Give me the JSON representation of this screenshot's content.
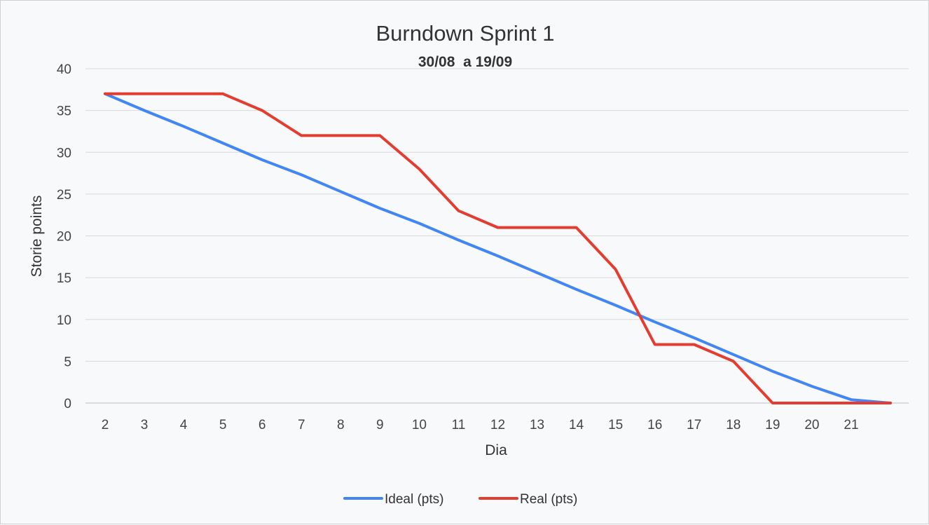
{
  "chart_data": {
    "type": "line",
    "title": "Burndown Sprint 1",
    "subtitle": "30/08  a 19/09",
    "xlabel": "Dia",
    "ylabel": "Storie points",
    "x": [
      2,
      3,
      4,
      5,
      6,
      7,
      8,
      9,
      10,
      11,
      12,
      13,
      14,
      15,
      16,
      17,
      18,
      19,
      20,
      21,
      22
    ],
    "x_tick_labels": [
      "2",
      "3",
      "4",
      "5",
      "6",
      "7",
      "8",
      "9",
      "10",
      "11",
      "12",
      "13",
      "14",
      "15",
      "16",
      "17",
      "18",
      "19",
      "20",
      "21",
      ""
    ],
    "ylim": [
      0,
      40
    ],
    "y_ticks": [
      0,
      5,
      10,
      15,
      20,
      25,
      30,
      35,
      40
    ],
    "grid": true,
    "legend_position": "bottom",
    "series": [
      {
        "name": "Ideal (pts)",
        "color": "#4285f4",
        "values": [
          37,
          35,
          33.1,
          31.1,
          29.1,
          27.3,
          25.3,
          23.3,
          21.5,
          19.5,
          17.6,
          15.6,
          13.6,
          11.7,
          9.7,
          7.8,
          5.8,
          3.8,
          2,
          0.4,
          0
        ]
      },
      {
        "name": "Real (pts)",
        "color": "#e33c30",
        "values": [
          37,
          37,
          37,
          37,
          35,
          32,
          32,
          32,
          28,
          23,
          21,
          21,
          21,
          16,
          7,
          7,
          5,
          0,
          0,
          0,
          0
        ]
      }
    ]
  }
}
